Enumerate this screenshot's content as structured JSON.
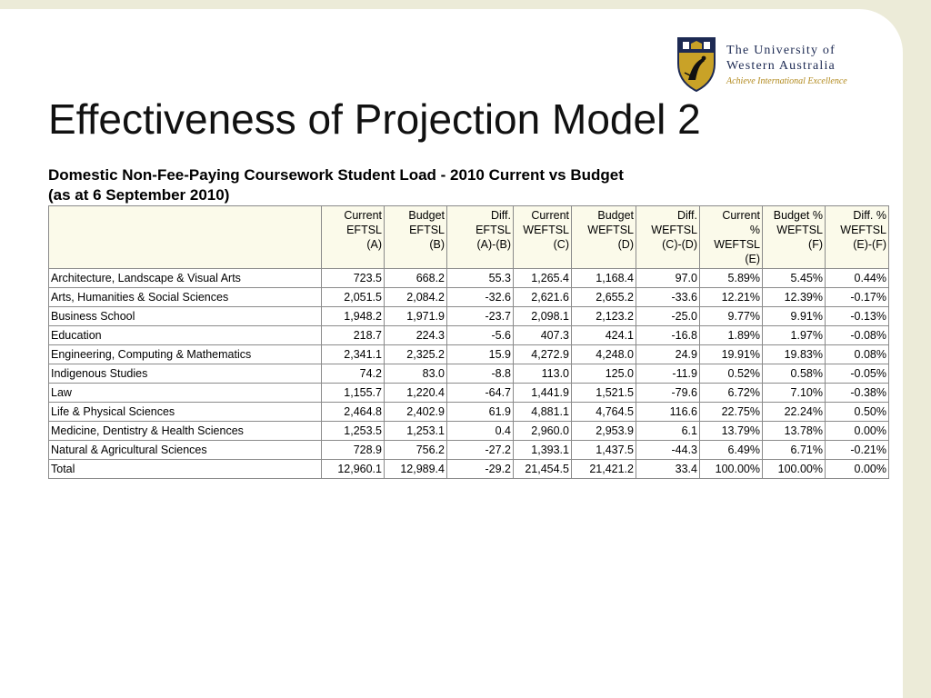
{
  "logo": {
    "line1": "The University of",
    "line2": "Western Australia",
    "tagline": "Achieve International Excellence"
  },
  "title": "Effectiveness of Projection Model 2",
  "table_title": {
    "line1": "Domestic Non-Fee-Paying Coursework Student Load - 2010 Current vs Budget",
    "line2": "(as at 6 September 2010)"
  },
  "table": {
    "columns": [
      "Current\nEFTSL\n(A)",
      "Budget\nEFTSL\n(B)",
      "Diff.\nEFTSL\n(A)-(B)",
      "Current\nWEFTSL\n(C)",
      "Budget\nWEFTSL\n(D)",
      "Diff.\nWEFTSL\n(C)-(D)",
      "Current\n%\nWEFTSL\n(E)",
      "Budget %\nWEFTSL\n(F)",
      "Diff. %\nWEFTSL\n(E)-(F)"
    ],
    "rows": [
      {
        "name": "Architecture, Landscape & Visual Arts",
        "values": [
          "723.5",
          "668.2",
          "55.3",
          "1,265.4",
          "1,168.4",
          "97.0",
          "5.89%",
          "5.45%",
          "0.44%"
        ]
      },
      {
        "name": "Arts, Humanities & Social Sciences",
        "values": [
          "2,051.5",
          "2,084.2",
          "-32.6",
          "2,621.6",
          "2,655.2",
          "-33.6",
          "12.21%",
          "12.39%",
          "-0.17%"
        ]
      },
      {
        "name": "Business School",
        "values": [
          "1,948.2",
          "1,971.9",
          "-23.7",
          "2,098.1",
          "2,123.2",
          "-25.0",
          "9.77%",
          "9.91%",
          "-0.13%"
        ]
      },
      {
        "name": "Education",
        "values": [
          "218.7",
          "224.3",
          "-5.6",
          "407.3",
          "424.1",
          "-16.8",
          "1.89%",
          "1.97%",
          "-0.08%"
        ]
      },
      {
        "name": "Engineering, Computing & Mathematics",
        "values": [
          "2,341.1",
          "2,325.2",
          "15.9",
          "4,272.9",
          "4,248.0",
          "24.9",
          "19.91%",
          "19.83%",
          "0.08%"
        ]
      },
      {
        "name": "Indigenous Studies",
        "values": [
          "74.2",
          "83.0",
          "-8.8",
          "113.0",
          "125.0",
          "-11.9",
          "0.52%",
          "0.58%",
          "-0.05%"
        ]
      },
      {
        "name": "Law",
        "values": [
          "1,155.7",
          "1,220.4",
          "-64.7",
          "1,441.9",
          "1,521.5",
          "-79.6",
          "6.72%",
          "7.10%",
          "-0.38%"
        ]
      },
      {
        "name": "Life & Physical Sciences",
        "values": [
          "2,464.8",
          "2,402.9",
          "61.9",
          "4,881.1",
          "4,764.5",
          "116.6",
          "22.75%",
          "22.24%",
          "0.50%"
        ]
      },
      {
        "name": "Medicine, Dentistry & Health Sciences",
        "values": [
          "1,253.5",
          "1,253.1",
          "0.4",
          "2,960.0",
          "2,953.9",
          "6.1",
          "13.79%",
          "13.78%",
          "0.00%"
        ]
      },
      {
        "name": "Natural & Agricultural Sciences",
        "values": [
          "728.9",
          "756.2",
          "-27.2",
          "1,393.1",
          "1,437.5",
          "-44.3",
          "6.49%",
          "6.71%",
          "-0.21%"
        ]
      },
      {
        "name": "Total",
        "values": [
          "12,960.1",
          "12,989.4",
          "-29.2",
          "21,454.5",
          "21,421.2",
          "33.4",
          "100.00%",
          "100.00%",
          "0.00%"
        ]
      }
    ]
  }
}
